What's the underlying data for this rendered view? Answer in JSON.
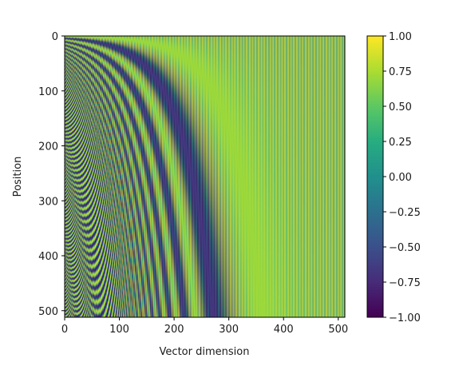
{
  "chart_data": {
    "type": "heatmap",
    "title": "",
    "xlabel": "Vector dimension",
    "ylabel": "Position",
    "xlim": [
      0,
      512
    ],
    "ylim": [
      512,
      0
    ],
    "rows": 512,
    "cols": 512,
    "function": "sinusoidal positional encoding: value(pos, dim) = sin(pos / 10000^(2*floor(dim/2)/512)) for even dim, cos(...) for odd dim",
    "xticks": [
      "0",
      "100",
      "200",
      "300",
      "400",
      "500"
    ],
    "xtick_values": [
      0,
      100,
      200,
      300,
      400,
      500
    ],
    "yticks": [
      "0",
      "100",
      "200",
      "300",
      "400",
      "500"
    ],
    "ytick_values": [
      0,
      100,
      200,
      300,
      400,
      500
    ],
    "colormap": "viridis",
    "colorbar": {
      "vmin": -1.0,
      "vmax": 1.0,
      "ticks": [
        "1.00",
        "0.75",
        "0.50",
        "0.25",
        "0.00",
        "−0.25",
        "−0.50",
        "−0.75",
        "−1.00"
      ],
      "tick_values": [
        1.0,
        0.75,
        0.5,
        0.25,
        0.0,
        -0.25,
        -0.5,
        -0.75,
        -1.0
      ]
    },
    "grid": false
  }
}
